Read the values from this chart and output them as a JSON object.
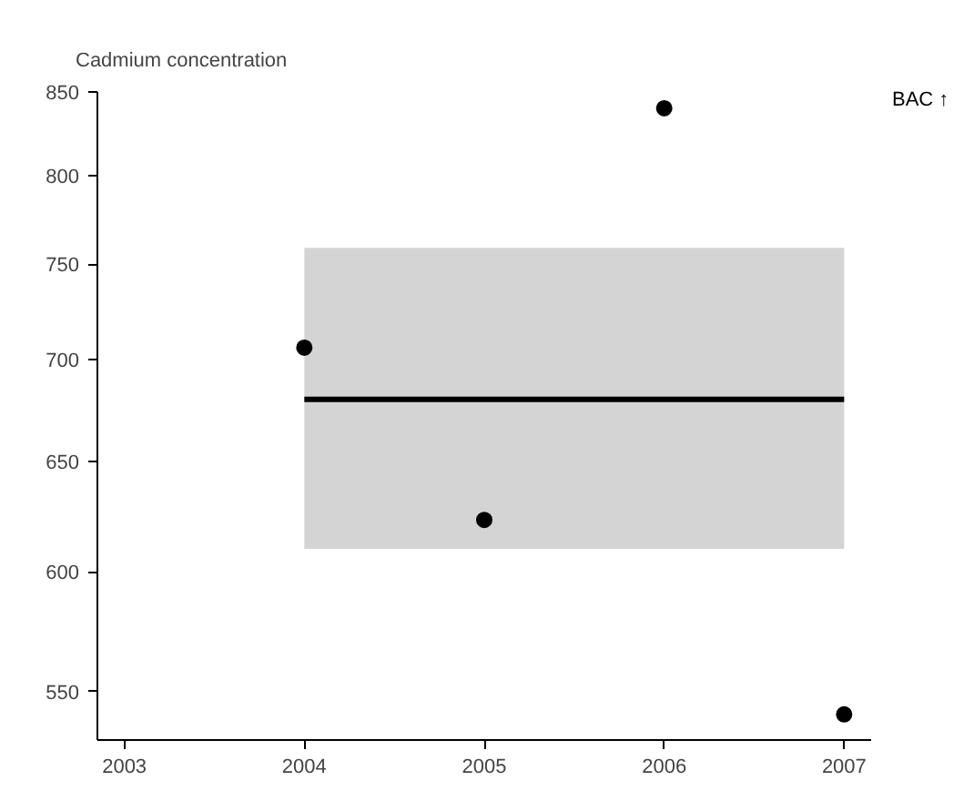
{
  "chart_data": {
    "type": "scatter",
    "title": "Cadmium concentration",
    "annotations": [
      "BAC ↑"
    ],
    "log": "y",
    "grid": false,
    "series": [
      {
        "color": "#000000",
        "x": [
          2004,
          2005,
          2006,
          2007
        ],
        "values": [
          706,
          623,
          840,
          541
        ],
        "marker": "circle"
      },
      {
        "type": "line",
        "color": "#000000",
        "x": [
          2004,
          2007
        ],
        "values": [
          680,
          680
        ],
        "lower": [
          610,
          610
        ],
        "upper": [
          759,
          759
        ],
        "line_style": "solid",
        "marker": "none"
      }
    ],
    "xlim": [
      2002.85,
      2007.15
    ],
    "ylim": [
      531,
      850
    ],
    "xticks": [
      2003,
      2004,
      2005,
      2006,
      2007
    ],
    "yticks": [
      550,
      600,
      650,
      700,
      750,
      800,
      850
    ]
  }
}
